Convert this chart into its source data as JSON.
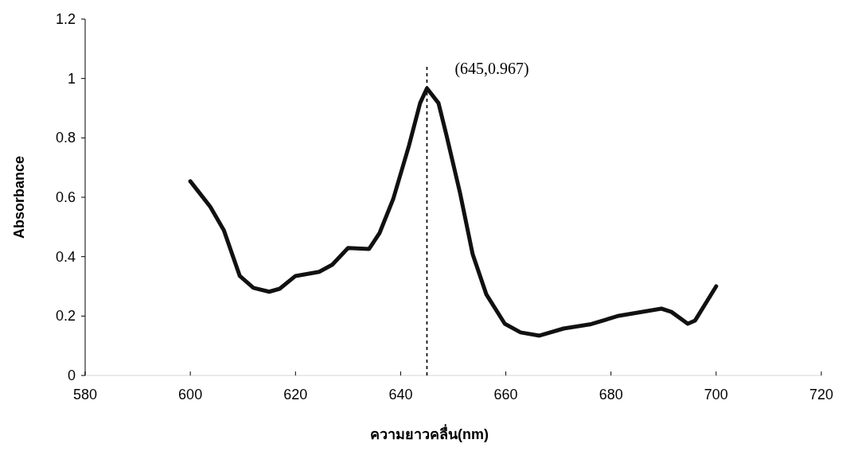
{
  "chart_data": {
    "type": "line",
    "xlabel": "ความยาวคลื่น(nm)",
    "ylabel": "Absorbance",
    "xlim": [
      580,
      720
    ],
    "xticks": [
      580,
      600,
      620,
      640,
      660,
      680,
      700,
      720
    ],
    "ylim": [
      0,
      1.2
    ],
    "yticks": [
      0,
      0.2,
      0.4,
      0.6,
      0.8,
      1,
      1.2
    ],
    "grid": false,
    "marker": "none",
    "line_style": "solid",
    "series": [
      {
        "color": "#111111",
        "x": [
          600,
          603.8,
          606.4,
          609.4,
          612,
          615,
          617,
          620,
          624.5,
          627,
          630,
          634,
          636,
          638.6,
          641.6,
          643.7,
          645,
          647.2,
          648.7,
          651.3,
          653.7,
          656.3,
          659.8,
          662.8,
          666.4,
          671,
          676,
          681.5,
          689.6,
          691.5,
          694.6,
          696,
          700
        ],
        "values": [
          0.654,
          0.568,
          0.488,
          0.335,
          0.295,
          0.282,
          0.292,
          0.335,
          0.349,
          0.373,
          0.429,
          0.426,
          0.48,
          0.595,
          0.775,
          0.917,
          0.967,
          0.917,
          0.81,
          0.614,
          0.408,
          0.273,
          0.174,
          0.145,
          0.134,
          0.158,
          0.172,
          0.201,
          0.225,
          0.214,
          0.174,
          0.185,
          0.3
        ]
      }
    ],
    "ref_lines": [
      {
        "axis": "x",
        "value": 645,
        "color": "#111111",
        "line_style": "dashed"
      }
    ],
    "annotations": [
      {
        "text": "(645,0.967)",
        "x": 645,
        "y": 0.967
      }
    ]
  }
}
